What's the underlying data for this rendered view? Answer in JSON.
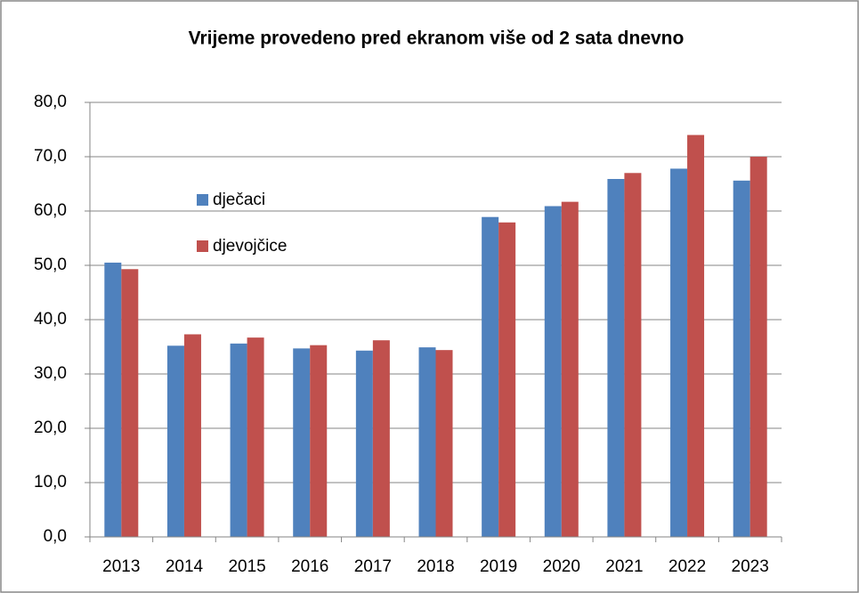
{
  "chart_data": {
    "type": "bar",
    "title": "Vrijeme provedeno pred ekranom više od 2 sata dnevno",
    "categories": [
      "2013",
      "2014",
      "2015",
      "2016",
      "2017",
      "2018",
      "2019",
      "2020",
      "2021",
      "2022",
      "2023"
    ],
    "series": [
      {
        "name": "dječaci",
        "color": "#4f81bd",
        "values": [
          50.5,
          35.2,
          35.6,
          34.7,
          34.3,
          34.9,
          58.9,
          60.9,
          65.9,
          67.8,
          65.6
        ]
      },
      {
        "name": "djevojčice",
        "color": "#c0504d",
        "values": [
          49.3,
          37.3,
          36.7,
          35.3,
          36.2,
          34.4,
          57.9,
          61.7,
          67.0,
          74.0,
          70.0
        ]
      }
    ],
    "ylim": [
      0,
      80
    ],
    "yticks": [
      {
        "value": 0,
        "label": "0,0"
      },
      {
        "value": 10,
        "label": "10,0"
      },
      {
        "value": 20,
        "label": "20,0"
      },
      {
        "value": 30,
        "label": "30,0"
      },
      {
        "value": 40,
        "label": "40,0"
      },
      {
        "value": 50,
        "label": "50,0"
      },
      {
        "value": 60,
        "label": "60,0"
      },
      {
        "value": 70,
        "label": "70,0"
      },
      {
        "value": 80,
        "label": "80,0"
      }
    ],
    "grid": true,
    "legend": "upper left"
  }
}
